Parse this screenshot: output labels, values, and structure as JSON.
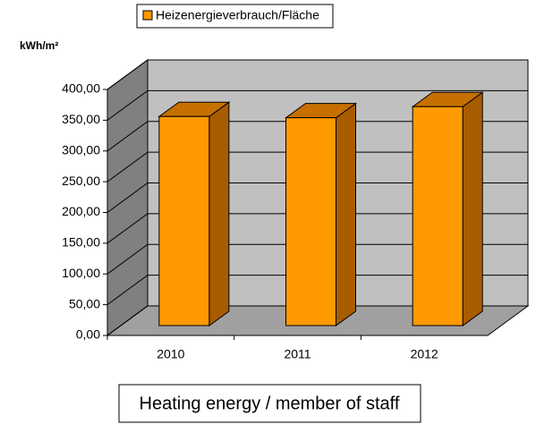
{
  "chart_data": {
    "type": "bar3d",
    "legend_title": null,
    "ylabel": "kWh/m²",
    "caption": "Heating energy / member of staff",
    "categories": [
      "2010",
      "2011",
      "2012"
    ],
    "series": [
      {
        "name": "Heizenergieverbrauch/Fläche",
        "color": "#ff9900",
        "values": [
          340,
          338,
          356
        ]
      }
    ],
    "ylim": [
      0,
      400
    ],
    "yticks": [
      {
        "value": 0,
        "label": "0,00"
      },
      {
        "value": 50,
        "label": "50,00"
      },
      {
        "value": 100,
        "label": "100,00"
      },
      {
        "value": 150,
        "label": "150,00"
      },
      {
        "value": 200,
        "label": "200,00"
      },
      {
        "value": 250,
        "label": "250,00"
      },
      {
        "value": 300,
        "label": "300,00"
      },
      {
        "value": 350,
        "label": "350,00"
      },
      {
        "value": 400,
        "label": "400,00"
      }
    ],
    "grid": true,
    "legend": "top"
  }
}
